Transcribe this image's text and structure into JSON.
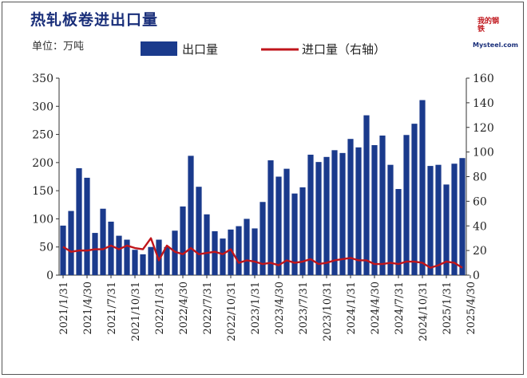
{
  "header": {
    "title": "热轧板卷进出口量",
    "unit": "单位：万吨"
  },
  "logo": {
    "text_cn": "我的钢铁",
    "text_en": "Mysteel.com"
  },
  "colors": {
    "bar": "#1a3a8c",
    "line": "#c0151b",
    "axis": "#333333",
    "title": "#1a2f7a"
  },
  "chart_data": {
    "type": "bar",
    "title": "热轧板卷进出口量",
    "unit": "单位：万吨",
    "legend_position": "top",
    "grid": false,
    "x_tick_labels": [
      "2021/1/31",
      "2021/4/30",
      "2021/7/31",
      "2021/10/31",
      "2022/1/31",
      "2022/4/30",
      "2022/7/31",
      "2022/10/31",
      "2023/1/31",
      "2023/4/30",
      "2023/7/31",
      "2023/10/31",
      "2024/1/31",
      "2024/4/30",
      "2024/7/31",
      "2024/10/31",
      "2025/1/31",
      "2025/4/30"
    ],
    "y_left": {
      "ylim": [
        0,
        350
      ],
      "ticks": [
        0,
        50,
        100,
        150,
        200,
        250,
        300,
        350
      ]
    },
    "y_right": {
      "ylim": [
        0,
        160
      ],
      "ticks": [
        0,
        20,
        40,
        60,
        80,
        100,
        120,
        140,
        160
      ]
    },
    "series": [
      {
        "name": "出口量",
        "type": "bar",
        "axis": "left",
        "values": [
          88,
          114,
          190,
          173,
          75,
          118,
          95,
          70,
          63,
          45,
          37,
          50,
          63,
          50,
          79,
          122,
          212,
          157,
          108,
          78,
          65,
          81,
          87,
          100,
          83,
          130,
          204,
          175,
          189,
          145,
          156,
          214,
          201,
          210,
          222,
          217,
          242,
          227,
          284,
          231,
          248,
          196,
          153,
          249,
          269,
          311,
          194,
          196,
          161,
          198,
          208
        ]
      },
      {
        "name": "进口量（右轴）",
        "type": "line",
        "axis": "right",
        "values": [
          23,
          19,
          20,
          20,
          21,
          21,
          24,
          21,
          24,
          22,
          21,
          30,
          12,
          24,
          19,
          17,
          22,
          17,
          18,
          19,
          17,
          21,
          10,
          12,
          11,
          9,
          10,
          8,
          12,
          10,
          11,
          13,
          9,
          10,
          12,
          13,
          14,
          12,
          12,
          9,
          9,
          10,
          9,
          11,
          11,
          10,
          6,
          8,
          11,
          10,
          6
        ]
      }
    ]
  }
}
